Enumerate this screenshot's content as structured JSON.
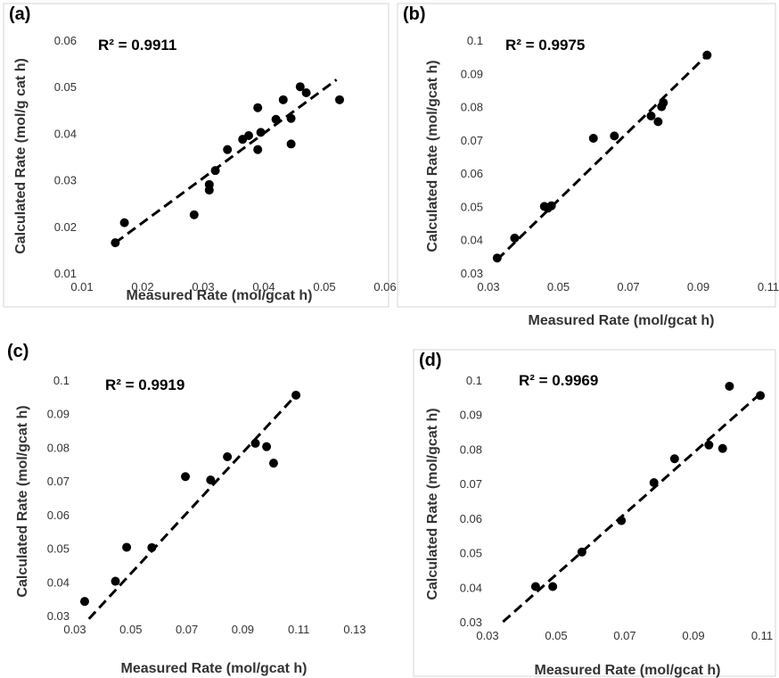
{
  "chart_data": [
    {
      "type": "scatter",
      "panel_label": "(a)",
      "annotation": "R² = 0.9911",
      "xlabel": "Measured Rate (mol/gcat h)",
      "ylabel": "Calculated Rate (mol/g cat h)",
      "xlim": [
        0.01,
        0.06
      ],
      "ylim": [
        0.01,
        0.06
      ],
      "x_ticks": [
        "0.01",
        "0.02",
        "0.03",
        "0.04",
        "0.05",
        "0.06"
      ],
      "y_ticks": [
        "0.01",
        "0.02",
        "0.03",
        "0.04",
        "0.05",
        "0.06"
      ],
      "trendline": [
        [
          0.0155,
          0.0165
        ],
        [
          0.052,
          0.0515
        ]
      ],
      "points": [
        [
          0.0155,
          0.0165
        ],
        [
          0.017,
          0.0208
        ],
        [
          0.0285,
          0.0225
        ],
        [
          0.031,
          0.0278
        ],
        [
          0.031,
          0.029
        ],
        [
          0.032,
          0.032
        ],
        [
          0.034,
          0.0365
        ],
        [
          0.0365,
          0.0387
        ],
        [
          0.0375,
          0.0395
        ],
        [
          0.039,
          0.0365
        ],
        [
          0.039,
          0.0455
        ],
        [
          0.0395,
          0.0402
        ],
        [
          0.042,
          0.043
        ],
        [
          0.0432,
          0.0472
        ],
        [
          0.0445,
          0.0432
        ],
        [
          0.0445,
          0.0377
        ],
        [
          0.046,
          0.05
        ],
        [
          0.047,
          0.0487
        ],
        [
          0.0525,
          0.0472
        ]
      ],
      "grid": false
    },
    {
      "type": "scatter",
      "panel_label": "(b)",
      "annotation": "R² = 0.9975",
      "xlabel": "Measured Rate (mol/gcat h)",
      "ylabel": "Calculated Rate (mol/gcat h)",
      "xlim": [
        0.03,
        0.11
      ],
      "ylim": [
        0.03,
        0.1
      ],
      "x_ticks": [
        "0.03",
        "0.05",
        "0.07",
        "0.09",
        "0.11"
      ],
      "y_ticks": [
        "0.03",
        "0.04",
        "0.05",
        "0.06",
        "0.07",
        "0.08",
        "0.09",
        "0.1"
      ],
      "trendline": [
        [
          0.0325,
          0.034
        ],
        [
          0.0925,
          0.0955
        ]
      ],
      "points": [
        [
          0.0325,
          0.0345
        ],
        [
          0.0375,
          0.0405
        ],
        [
          0.046,
          0.05
        ],
        [
          0.047,
          0.0495
        ],
        [
          0.048,
          0.0502
        ],
        [
          0.06,
          0.0705
        ],
        [
          0.066,
          0.0712
        ],
        [
          0.0765,
          0.0772
        ],
        [
          0.0785,
          0.0755
        ],
        [
          0.0795,
          0.08
        ],
        [
          0.08,
          0.0812
        ],
        [
          0.0925,
          0.0955
        ]
      ],
      "grid": false
    },
    {
      "type": "scatter",
      "panel_label": "(c)",
      "annotation": "R² = 0.9919",
      "xlabel": "Measured Rate (mol/gcat h)",
      "ylabel": "Calculated Rate (mol/gcat h)",
      "xlim": [
        0.03,
        0.13
      ],
      "ylim": [
        0.03,
        0.1
      ],
      "x_ticks": [
        "0.03",
        "0.05",
        "0.07",
        "0.09",
        "0.11",
        "0.13"
      ],
      "y_ticks": [
        "0.03",
        "0.04",
        "0.05",
        "0.06",
        "0.07",
        "0.08",
        "0.09",
        "0.1"
      ],
      "trendline": [
        [
          0.035,
          0.029
        ],
        [
          0.109,
          0.0955
        ]
      ],
      "points": [
        [
          0.0335,
          0.0342
        ],
        [
          0.0445,
          0.0402
        ],
        [
          0.0485,
          0.0503
        ],
        [
          0.0575,
          0.0502
        ],
        [
          0.0695,
          0.0713
        ],
        [
          0.0785,
          0.0703
        ],
        [
          0.0845,
          0.0772
        ],
        [
          0.0945,
          0.0812
        ],
        [
          0.0985,
          0.0802
        ],
        [
          0.101,
          0.0753
        ],
        [
          0.109,
          0.0955
        ]
      ],
      "grid": false
    },
    {
      "type": "scatter",
      "panel_label": "(d)",
      "annotation": "R² = 0.9969",
      "xlabel": "Measured Rate (mol/gcat h)",
      "ylabel": "Calculated Rate (mol/gcat h)",
      "xlim": [
        0.03,
        0.11
      ],
      "ylim": [
        0.03,
        0.1
      ],
      "x_ticks": [
        "0.03",
        "0.05",
        "0.07",
        "0.09",
        "0.11"
      ],
      "y_ticks": [
        "0.03",
        "0.04",
        "0.05",
        "0.06",
        "0.07",
        "0.08",
        "0.09",
        "0.1"
      ],
      "trendline": [
        [
          0.0345,
          0.03
        ],
        [
          0.11,
          0.0965
        ]
      ],
      "points": [
        [
          0.044,
          0.0402
        ],
        [
          0.049,
          0.0402
        ],
        [
          0.0575,
          0.0502
        ],
        [
          0.069,
          0.0593
        ],
        [
          0.0785,
          0.0703
        ],
        [
          0.0845,
          0.0772
        ],
        [
          0.0945,
          0.0812
        ],
        [
          0.0985,
          0.0802
        ],
        [
          0.1005,
          0.0982
        ],
        [
          0.1095,
          0.0955
        ]
      ],
      "grid": false
    }
  ]
}
